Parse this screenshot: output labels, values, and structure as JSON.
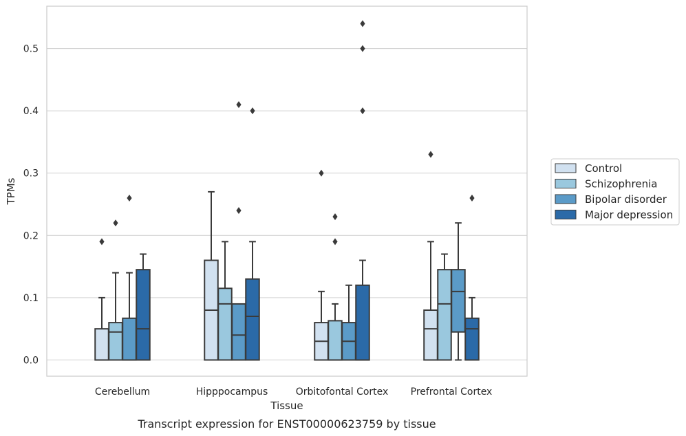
{
  "caption": "Transcript expression for ENST00000623759 by tissue",
  "chart_data": {
    "type": "box",
    "xlabel": "Tissue",
    "ylabel": "TPMs",
    "ylim": [
      -0.026,
      0.568
    ],
    "yticks": [
      "0.0",
      "0.1",
      "0.2",
      "0.3",
      "0.4",
      "0.5"
    ],
    "grid": "horizontal",
    "legend_position": "right",
    "categories": [
      "Cerebellum",
      "Hipppocampus",
      "Orbitofontal Cortex",
      "Prefrontal Cortex"
    ],
    "series": [
      {
        "name": "Control",
        "color": "#d1e1f0",
        "boxes": [
          {
            "whislo": 0.0,
            "q1": 0.0,
            "med": 0.0,
            "q3": 0.05,
            "whishi": 0.1,
            "fliers": [
              0.19
            ]
          },
          {
            "whislo": 0.0,
            "q1": 0.0,
            "med": 0.08,
            "q3": 0.16,
            "whishi": 0.27,
            "fliers": []
          },
          {
            "whislo": 0.0,
            "q1": 0.0,
            "med": 0.03,
            "q3": 0.06,
            "whishi": 0.11,
            "fliers": [
              0.3
            ]
          },
          {
            "whislo": 0.0,
            "q1": 0.0,
            "med": 0.05,
            "q3": 0.08,
            "whishi": 0.19,
            "fliers": [
              0.33
            ]
          }
        ]
      },
      {
        "name": "Schizophrenia",
        "color": "#9ac8de",
        "boxes": [
          {
            "whislo": 0.0,
            "q1": 0.0,
            "med": 0.045,
            "q3": 0.06,
            "whishi": 0.14,
            "fliers": [
              0.22
            ]
          },
          {
            "whislo": 0.0,
            "q1": 0.0,
            "med": 0.09,
            "q3": 0.115,
            "whishi": 0.19,
            "fliers": []
          },
          {
            "whislo": 0.0,
            "q1": 0.0,
            "med": 0.0,
            "q3": 0.063,
            "whishi": 0.09,
            "fliers": [
              0.19,
              0.23
            ]
          },
          {
            "whislo": 0.0,
            "q1": 0.0,
            "med": 0.09,
            "q3": 0.145,
            "whishi": 0.17,
            "fliers": []
          }
        ]
      },
      {
        "name": "Bipolar disorder",
        "color": "#5b9bc8",
        "boxes": [
          {
            "whislo": 0.0,
            "q1": 0.0,
            "med": 0.0,
            "q3": 0.067,
            "whishi": 0.14,
            "fliers": [
              0.26
            ]
          },
          {
            "whislo": 0.0,
            "q1": 0.0,
            "med": 0.04,
            "q3": 0.09,
            "whishi": 0.09,
            "fliers": [
              0.24,
              0.41
            ]
          },
          {
            "whislo": 0.0,
            "q1": 0.0,
            "med": 0.03,
            "q3": 0.06,
            "whishi": 0.12,
            "fliers": []
          },
          {
            "whislo": 0.0,
            "q1": 0.045,
            "med": 0.11,
            "q3": 0.145,
            "whishi": 0.22,
            "fliers": []
          }
        ]
      },
      {
        "name": "Major depression",
        "color": "#2b6aa8",
        "boxes": [
          {
            "whislo": 0.0,
            "q1": 0.0,
            "med": 0.05,
            "q3": 0.145,
            "whishi": 0.17,
            "fliers": []
          },
          {
            "whislo": 0.0,
            "q1": 0.0,
            "med": 0.07,
            "q3": 0.13,
            "whishi": 0.19,
            "fliers": [
              0.4
            ]
          },
          {
            "whislo": 0.0,
            "q1": 0.0,
            "med": 0.0,
            "q3": 0.12,
            "whishi": 0.16,
            "fliers": [
              0.4,
              0.5,
              0.54
            ]
          },
          {
            "whislo": 0.0,
            "q1": 0.0,
            "med": 0.05,
            "q3": 0.067,
            "whishi": 0.1,
            "fliers": [
              0.26
            ]
          }
        ]
      }
    ]
  }
}
